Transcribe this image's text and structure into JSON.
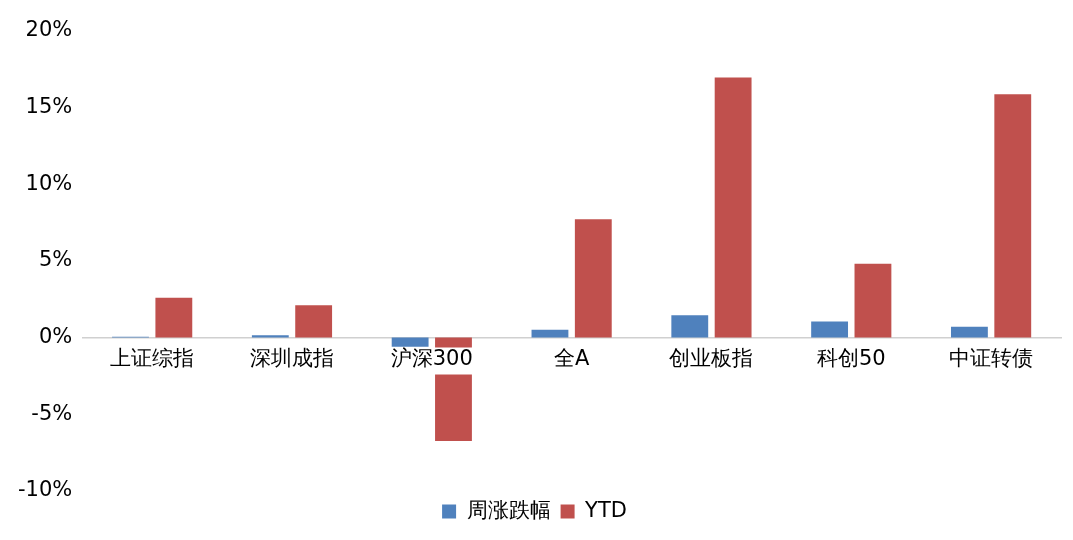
{
  "chart_data": {
    "type": "bar",
    "categories": [
      "上证综指",
      "深圳成指",
      "沪深300",
      "全A",
      "创业板指",
      "科创50",
      "中证转债"
    ],
    "series": [
      {
        "name": "周涨跌幅",
        "color": "#4f81bd",
        "values": [
          0.05,
          0.15,
          -0.6,
          0.5,
          1.45,
          1.05,
          0.7
        ]
      },
      {
        "name": "YTD",
        "color": "#c0504d",
        "values": [
          2.6,
          2.1,
          -6.75,
          7.7,
          16.95,
          4.8,
          15.85
        ]
      }
    ],
    "ylim": [
      -10,
      20
    ],
    "yticks": [
      {
        "value": -10,
        "label": "-10%"
      },
      {
        "value": -5,
        "label": "-5%"
      },
      {
        "value": 0,
        "label": "0%"
      },
      {
        "value": 5,
        "label": "5%"
      },
      {
        "value": 10,
        "label": "10%"
      },
      {
        "value": 15,
        "label": "15%"
      },
      {
        "value": 20,
        "label": "20%"
      }
    ],
    "grid": false,
    "legend": "bottom"
  }
}
